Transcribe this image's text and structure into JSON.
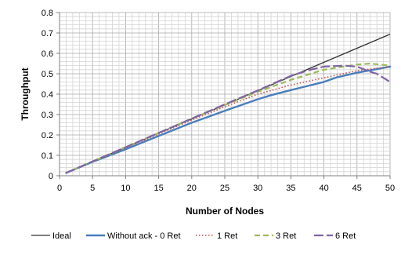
{
  "chart_data": {
    "type": "line",
    "title": "",
    "xlabel": "Number of Nodes",
    "ylabel": "Throughput",
    "xlim": [
      0,
      50
    ],
    "ylim": [
      0,
      0.8
    ],
    "x_ticks": [
      0,
      5,
      10,
      15,
      20,
      25,
      30,
      35,
      40,
      45,
      50
    ],
    "x_tick_labels": [
      "0",
      "5",
      "10",
      "15",
      "20",
      "25",
      "30",
      "35",
      "40",
      "45",
      "50"
    ],
    "y_ticks": [
      0,
      0.1,
      0.2,
      0.3,
      0.4,
      0.5,
      0.6,
      0.7,
      0.8
    ],
    "y_tick_labels": [
      "0",
      "0.1",
      "0.2",
      "0.3",
      "0.4",
      "0.5",
      "0.6",
      "0.7",
      "0.8"
    ],
    "grid": true,
    "legend_position": "bottom",
    "series": [
      {
        "name": "Ideal",
        "color": "#333333",
        "style": "solid-thin",
        "x": [
          1,
          10,
          20,
          30,
          40,
          50
        ],
        "y": [
          0.014,
          0.139,
          0.278,
          0.417,
          0.556,
          0.694
        ]
      },
      {
        "name": "Without ack - 0 Ret",
        "color": "#4a7ebb",
        "style": "solid-thick",
        "x": [
          1,
          5,
          10,
          15,
          20,
          25,
          30,
          32,
          35,
          40,
          42,
          45,
          50
        ],
        "y": [
          0.014,
          0.068,
          0.13,
          0.195,
          0.26,
          0.318,
          0.375,
          0.395,
          0.42,
          0.46,
          0.483,
          0.505,
          0.535
        ]
      },
      {
        "name": "1 Ret",
        "color": "#c0504d",
        "style": "dotted",
        "x": [
          1,
          5,
          10,
          15,
          20,
          25,
          30,
          35,
          40,
          45,
          50
        ],
        "y": [
          0.014,
          0.069,
          0.137,
          0.205,
          0.273,
          0.338,
          0.4,
          0.445,
          0.48,
          0.515,
          0.535
        ]
      },
      {
        "name": "3 Ret",
        "color": "#9bbb59",
        "style": "dashed",
        "x": [
          1,
          5,
          10,
          15,
          20,
          25,
          30,
          35,
          40,
          45,
          47,
          50
        ],
        "y": [
          0.014,
          0.07,
          0.14,
          0.21,
          0.28,
          0.347,
          0.412,
          0.47,
          0.52,
          0.545,
          0.55,
          0.54
        ]
      },
      {
        "name": "6 Ret",
        "color": "#8064a2",
        "style": "dashed-long",
        "x": [
          1,
          5,
          10,
          15,
          20,
          25,
          30,
          35,
          38,
          40,
          43,
          45,
          47,
          48,
          50
        ],
        "y": [
          0.014,
          0.07,
          0.14,
          0.21,
          0.28,
          0.35,
          0.418,
          0.49,
          0.52,
          0.535,
          0.54,
          0.535,
          0.51,
          0.5,
          0.46
        ]
      }
    ]
  }
}
